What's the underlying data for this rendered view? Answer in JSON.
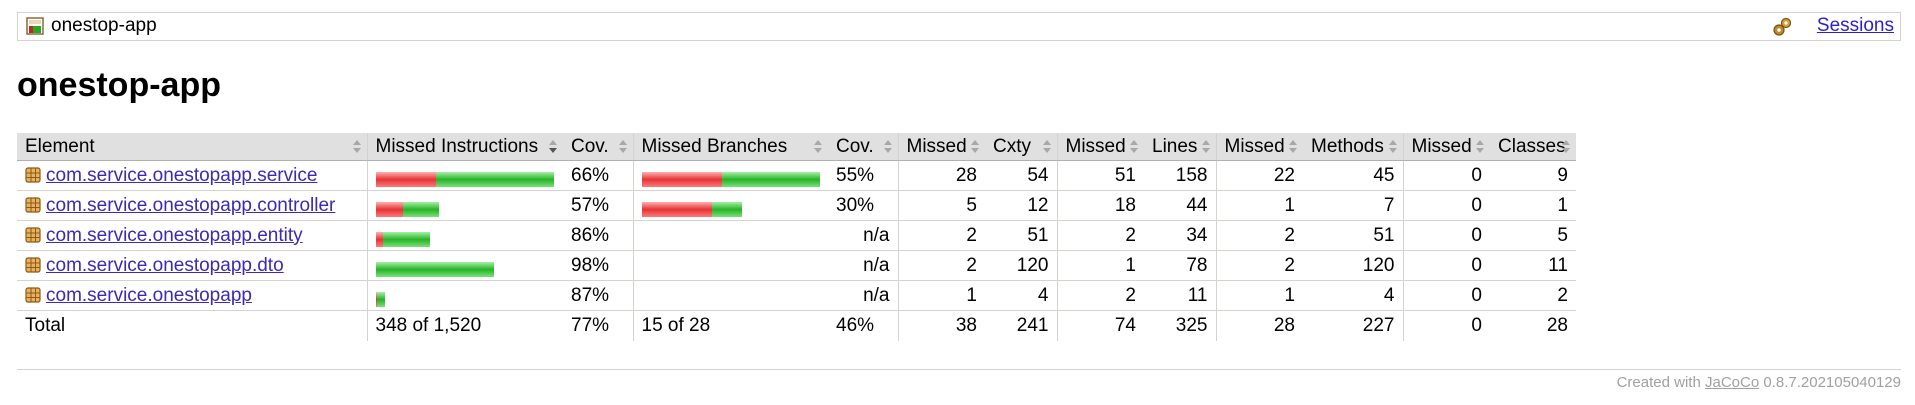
{
  "breadcrumb": {
    "report_name": "onestop-app",
    "sessions_link": "Sessions"
  },
  "page_title": "onestop-app",
  "table": {
    "headers": {
      "element": "Element",
      "missed_instructions": "Missed Instructions",
      "cov1": "Cov.",
      "missed_branches": "Missed Branches",
      "cov2": "Cov.",
      "missed_cxty": "Missed",
      "cxty": "Cxty",
      "missed_lines": "Missed",
      "lines": "Lines",
      "missed_methods": "Missed",
      "methods": "Methods",
      "missed_classes": "Missed",
      "classes": "Classes"
    },
    "rows": [
      {
        "element": "com.service.onestopapp.service",
        "instr_red": 60,
        "instr_green": 118,
        "instr_cov": "66%",
        "br_red": 80,
        "br_green": 98,
        "br_cov": "55%",
        "missed_cxty": "28",
        "cxty": "54",
        "missed_lines": "51",
        "lines": "158",
        "missed_methods": "22",
        "methods": "45",
        "missed_classes": "0",
        "classes": "9"
      },
      {
        "element": "com.service.onestopapp.controller",
        "instr_red": 27,
        "instr_green": 36,
        "instr_cov": "57%",
        "br_red": 70,
        "br_green": 30,
        "br_cov": "30%",
        "missed_cxty": "5",
        "cxty": "12",
        "missed_lines": "18",
        "lines": "44",
        "missed_methods": "1",
        "methods": "7",
        "missed_classes": "0",
        "classes": "1"
      },
      {
        "element": "com.service.onestopapp.entity",
        "instr_red": 7,
        "instr_green": 47,
        "instr_cov": "86%",
        "br_red": 0,
        "br_green": 0,
        "br_cov": "n/a",
        "missed_cxty": "2",
        "cxty": "51",
        "missed_lines": "2",
        "lines": "34",
        "missed_methods": "2",
        "methods": "51",
        "missed_classes": "0",
        "classes": "5"
      },
      {
        "element": "com.service.onestopapp.dto",
        "instr_red": 0,
        "instr_green": 118,
        "instr_cov": "98%",
        "br_red": 0,
        "br_green": 0,
        "br_cov": "n/a",
        "missed_cxty": "2",
        "cxty": "120",
        "missed_lines": "1",
        "lines": "78",
        "missed_methods": "2",
        "methods": "120",
        "missed_classes": "0",
        "classes": "11"
      },
      {
        "element": "com.service.onestopapp",
        "instr_red": 1,
        "instr_green": 8,
        "instr_cov": "87%",
        "br_red": 0,
        "br_green": 0,
        "br_cov": "n/a",
        "missed_cxty": "1",
        "cxty": "4",
        "missed_lines": "2",
        "lines": "11",
        "missed_methods": "1",
        "methods": "4",
        "missed_classes": "0",
        "classes": "2"
      }
    ],
    "total": {
      "label": "Total",
      "missed_instructions": "348 of 1,520",
      "instr_cov": "77%",
      "missed_branches": "15 of 28",
      "br_cov": "46%",
      "missed_cxty": "38",
      "cxty": "241",
      "missed_lines": "74",
      "lines": "325",
      "missed_methods": "28",
      "methods": "227",
      "missed_classes": "0",
      "classes": "28"
    }
  },
  "footer": {
    "prefix": "Created with",
    "tool_link": "JaCoCo",
    "version": "0.8.7.202105040129"
  }
}
